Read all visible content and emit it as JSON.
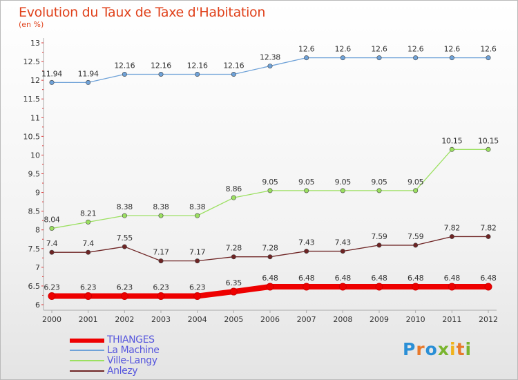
{
  "chart_data": {
    "type": "line",
    "title": "Evolution du Taux de Taxe d'Habitation",
    "subtitle": "(en %)",
    "x": [
      "2000",
      "2001",
      "2002",
      "2003",
      "2004",
      "2005",
      "2006",
      "2007",
      "2008",
      "2009",
      "2010",
      "2011",
      "2012"
    ],
    "ylim": [
      6,
      13
    ],
    "yticks": [
      "6",
      "6.5",
      "7",
      "7.5",
      "8",
      "8.5",
      "9",
      "9.5",
      "10",
      "10.5",
      "11",
      "11.5",
      "12",
      "12.5",
      "13"
    ],
    "grid": false,
    "legend_position": "bottom-left",
    "series": [
      {
        "name": "THIANGES",
        "color": "#ee0000",
        "values": [
          6.23,
          6.23,
          6.23,
          6.23,
          6.23,
          6.35,
          6.48,
          6.48,
          6.48,
          6.48,
          6.48,
          6.48,
          6.48
        ]
      },
      {
        "name": "La Machine",
        "color": "#6fa2d8",
        "values": [
          11.94,
          11.94,
          12.16,
          12.16,
          12.16,
          12.16,
          12.38,
          12.6,
          12.6,
          12.6,
          12.6,
          12.6,
          12.6
        ]
      },
      {
        "name": "Ville-Langy",
        "color": "#9be060",
        "values": [
          8.04,
          8.21,
          8.38,
          8.38,
          8.38,
          8.86,
          9.05,
          9.05,
          9.05,
          9.05,
          9.05,
          10.15,
          10.15
        ]
      },
      {
        "name": "Anlezy",
        "color": "#6e2424",
        "values": [
          7.4,
          7.4,
          7.55,
          7.17,
          7.17,
          7.28,
          7.28,
          7.43,
          7.43,
          7.59,
          7.59,
          7.82,
          7.82
        ]
      }
    ],
    "data_labels": [
      [
        "6.23",
        "6.23",
        "6.23",
        "6.23",
        "6.23",
        "6.35",
        "6.48",
        "6.48",
        "6.48",
        "6.48",
        "6.48",
        "6.48",
        "6.48"
      ],
      [
        "11.94",
        "11.94",
        "12.16",
        "12.16",
        "12.16",
        "12.16",
        "12.38",
        "12.6",
        "12.6",
        "12.6",
        "12.6",
        "12.6",
        "12.6"
      ],
      [
        "8.04",
        "8.21",
        "8.38",
        "8.38",
        "8.38",
        "8.86",
        "9.05",
        "9.05",
        "9.05",
        "9.05",
        "9.05",
        "10.15",
        "10.15"
      ],
      [
        "7.4",
        "7.4",
        "7.55",
        "7.17",
        "7.17",
        "7.28",
        "7.28",
        "7.43",
        "7.43",
        "7.59",
        "7.59",
        "7.82",
        "7.82"
      ]
    ]
  },
  "brand": {
    "letters": [
      "P",
      "r",
      "o",
      "x",
      "i",
      "t",
      "i"
    ],
    "colors": [
      "#2a8fd6",
      "#e8792b",
      "#2a8fd6",
      "#7ab52f",
      "#f0b21b",
      "#e8792b",
      "#7ab52f"
    ]
  }
}
